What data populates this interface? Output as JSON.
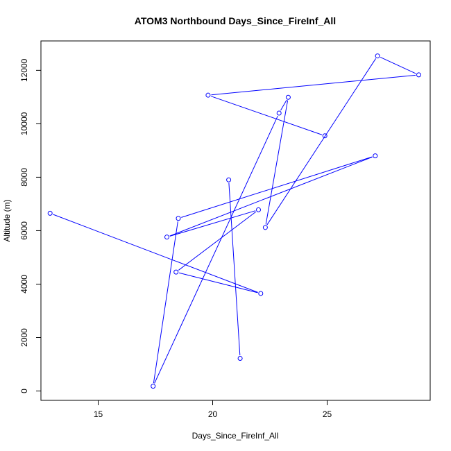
{
  "chart_data": {
    "type": "line",
    "title": "ATOM3 Northbound Days_Since_FireInf_All",
    "xlabel": "Days_Since_FireInf_All",
    "ylabel": "Altitude (m)",
    "xlim": [
      12.5,
      29.5
    ],
    "ylim": [
      -350,
      13100
    ],
    "xticks": [
      15,
      20,
      25
    ],
    "yticks": [
      0,
      2000,
      4000,
      6000,
      8000,
      10000,
      12000
    ],
    "grid": false,
    "legend": "none",
    "series": [
      {
        "color": "#0000ff",
        "marker": "open-circle",
        "x": [
          12.9,
          22.1,
          18.4,
          22.0,
          18.0,
          27.1,
          18.5,
          17.4,
          22.9,
          23.3,
          22.3,
          27.2,
          29.0,
          19.8,
          24.9
        ],
        "y": [
          6650,
          3650,
          4450,
          6780,
          5760,
          8800,
          6460,
          180,
          10400,
          10990,
          6120,
          12540,
          11830,
          11070,
          9550
        ]
      },
      {
        "color": "#0000ff",
        "marker": "open-circle",
        "x": [
          21.2,
          20.7
        ],
        "y": [
          1220,
          7900
        ]
      }
    ]
  }
}
